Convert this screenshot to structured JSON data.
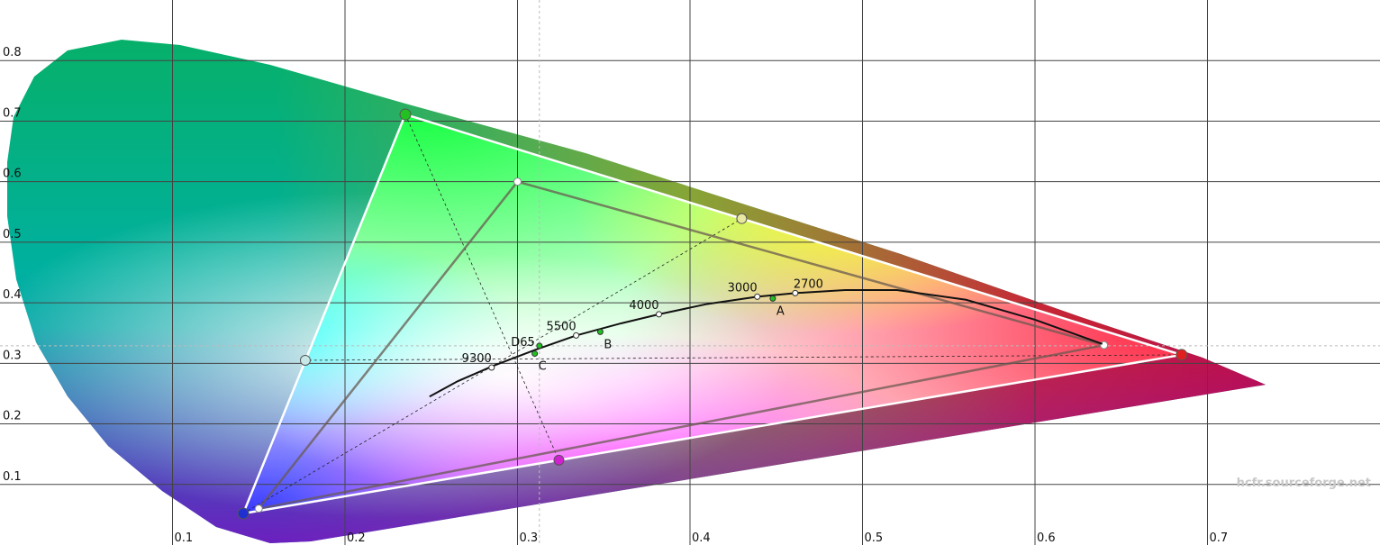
{
  "chart_data": {
    "type": "chromaticity",
    "xlim": [
      0,
      0.8
    ],
    "ylim": [
      0,
      0.9
    ],
    "xticks": [
      0.1,
      0.2,
      0.3,
      0.4,
      0.5,
      0.6,
      0.7
    ],
    "yticks": [
      0.1,
      0.2,
      0.3,
      0.4,
      0.5,
      0.6,
      0.7,
      0.8
    ],
    "grid": true,
    "measured_gamut": {
      "color": "#ffffff",
      "x": [
        0.235,
        0.685,
        0.141
      ],
      "y": [
        0.711,
        0.314,
        0.052
      ],
      "point_colors": [
        "#22c020",
        "#e02020",
        "#2030d0"
      ]
    },
    "secondaries": {
      "x": [
        0.177,
        0.43,
        0.324
      ],
      "y": [
        0.305,
        0.539,
        0.14
      ],
      "point_colors": [
        "#c8e8e8",
        "#e8e8a0",
        "#d020d0"
      ]
    },
    "reference_gamut": {
      "x": [
        0.3,
        0.64,
        0.15
      ],
      "y": [
        0.6,
        0.33,
        0.06
      ]
    },
    "white_point": {
      "x": 0.3127,
      "y": 0.329
    },
    "locus": {
      "x": [
        0.249,
        0.265,
        0.286,
        0.31,
        0.334,
        0.36,
        0.382,
        0.41,
        0.439,
        0.461,
        0.49,
        0.52,
        0.56,
        0.6,
        0.639
      ],
      "y": [
        0.245,
        0.27,
        0.296,
        0.322,
        0.346,
        0.366,
        0.381,
        0.398,
        0.41,
        0.416,
        0.421,
        0.421,
        0.405,
        0.372,
        0.332
      ]
    },
    "temperatures": {
      "labels": [
        "9300",
        "5500",
        "4000",
        "3000",
        "2700"
      ],
      "x": [
        0.285,
        0.334,
        0.382,
        0.439,
        0.461
      ],
      "y": [
        0.293,
        0.346,
        0.381,
        0.41,
        0.416
      ]
    },
    "illuminants": {
      "labels": [
        "D65",
        "C",
        "B",
        "A"
      ],
      "x": [
        0.3127,
        0.31,
        0.348,
        0.448
      ],
      "y": [
        0.329,
        0.316,
        0.352,
        0.407
      ]
    },
    "watermark": "hcfr.sourceforge.net"
  }
}
